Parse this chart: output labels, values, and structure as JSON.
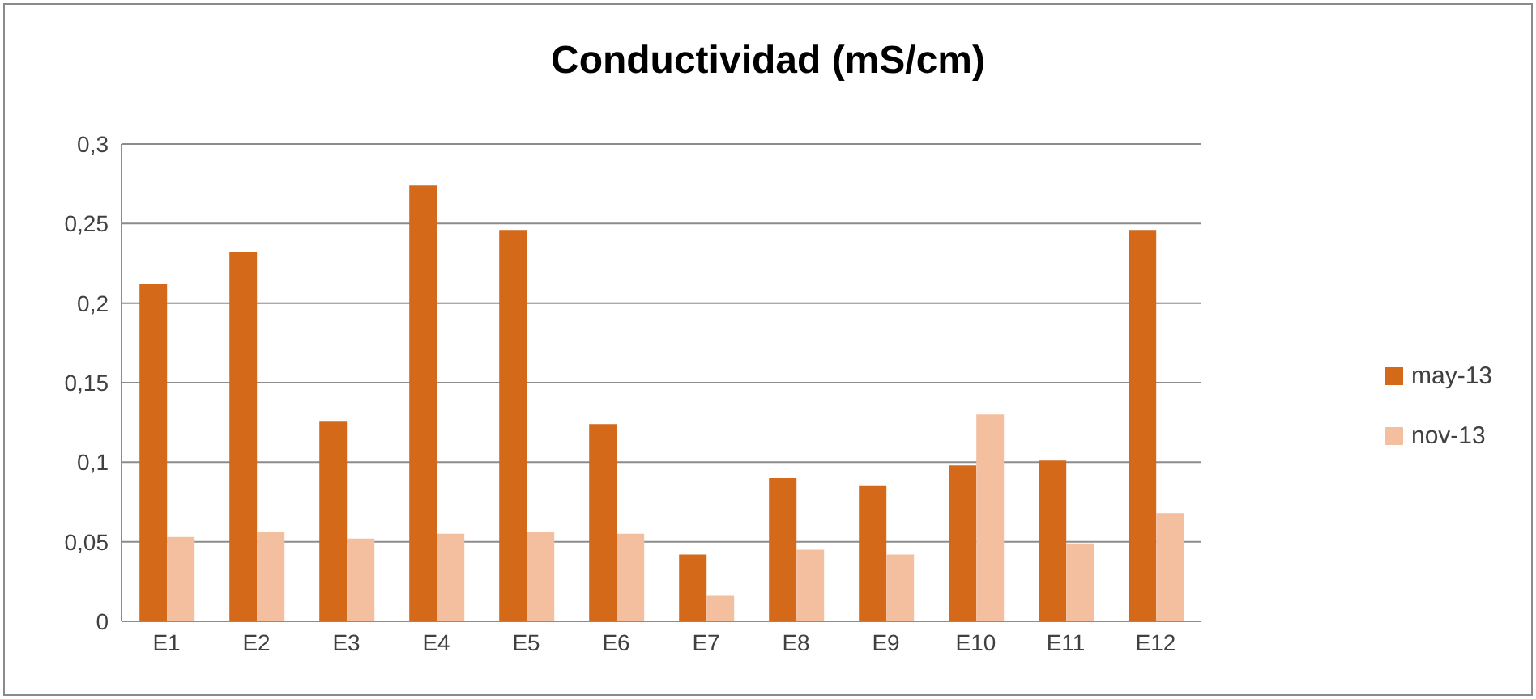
{
  "chart_data": {
    "type": "bar",
    "title": "Conductividad (mS/cm)",
    "categories": [
      "E1",
      "E2",
      "E3",
      "E4",
      "E5",
      "E6",
      "E7",
      "E8",
      "E9",
      "E10",
      "E11",
      "E12"
    ],
    "series": [
      {
        "name": "may-13",
        "color": "#d4691a",
        "values": [
          0.212,
          0.232,
          0.126,
          0.274,
          0.246,
          0.124,
          0.042,
          0.09,
          0.085,
          0.098,
          0.101,
          0.246
        ]
      },
      {
        "name": "nov-13",
        "color": "#f4bf9f",
        "values": [
          0.053,
          0.056,
          0.052,
          0.055,
          0.056,
          0.055,
          0.016,
          0.045,
          0.042,
          0.13,
          0.049,
          0.068
        ]
      }
    ],
    "ylim": [
      0,
      0.3
    ],
    "yticks": [
      0,
      {
        "value": 0.05,
        "label": "0,05"
      },
      {
        "value": 0.1,
        "label": "0,1"
      },
      {
        "value": 0.15,
        "label": "0,15"
      },
      {
        "value": 0.2,
        "label": "0,2"
      },
      {
        "value": 0.25,
        "label": "0,25"
      },
      {
        "value": 0.3,
        "label": "0,3"
      }
    ],
    "grid": "y",
    "legend": "right"
  }
}
